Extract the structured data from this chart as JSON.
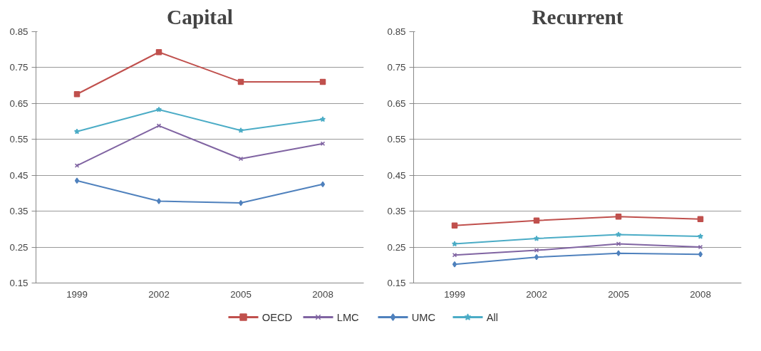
{
  "chart_data": [
    {
      "type": "line",
      "title": "Capital",
      "categories": [
        "1999",
        "2002",
        "2005",
        "2008"
      ],
      "ylim": [
        0.15,
        0.85
      ],
      "yticks": [
        0.15,
        0.25,
        0.35,
        0.45,
        0.55,
        0.65,
        0.75,
        0.85
      ],
      "grid": "y",
      "legend": "bottom",
      "series": [
        {
          "name": "OECD",
          "color": "#c0504d",
          "marker": "square",
          "values": [
            0.676,
            0.793,
            0.71,
            0.71
          ]
        },
        {
          "name": "LMC",
          "color": "#8064a2",
          "marker": "cross",
          "values": [
            0.477,
            0.588,
            0.496,
            0.538
          ]
        },
        {
          "name": "UMC",
          "color": "#4f81bd",
          "marker": "diamond",
          "values": [
            0.435,
            0.378,
            0.373,
            0.425
          ]
        },
        {
          "name": "All",
          "color": "#4bacc6",
          "marker": "star",
          "values": [
            0.572,
            0.633,
            0.575,
            0.606
          ]
        }
      ]
    },
    {
      "type": "line",
      "title": "Recurrent",
      "categories": [
        "1999",
        "2002",
        "2005",
        "2008"
      ],
      "ylim": [
        0.15,
        0.85
      ],
      "yticks": [
        0.15,
        0.25,
        0.35,
        0.45,
        0.55,
        0.65,
        0.75,
        0.85
      ],
      "grid": "y",
      "series": [
        {
          "color": "#c0504d",
          "marker": "square",
          "values": [
            0.31,
            0.324,
            0.335,
            0.328
          ]
        },
        {
          "color": "#8064a2",
          "marker": "cross",
          "values": [
            0.228,
            0.241,
            0.259,
            0.25
          ]
        },
        {
          "color": "#4f81bd",
          "marker": "diamond",
          "values": [
            0.202,
            0.222,
            0.233,
            0.23
          ]
        },
        {
          "color": "#4bacc6",
          "marker": "star",
          "values": [
            0.259,
            0.274,
            0.285,
            0.28
          ]
        }
      ]
    }
  ]
}
